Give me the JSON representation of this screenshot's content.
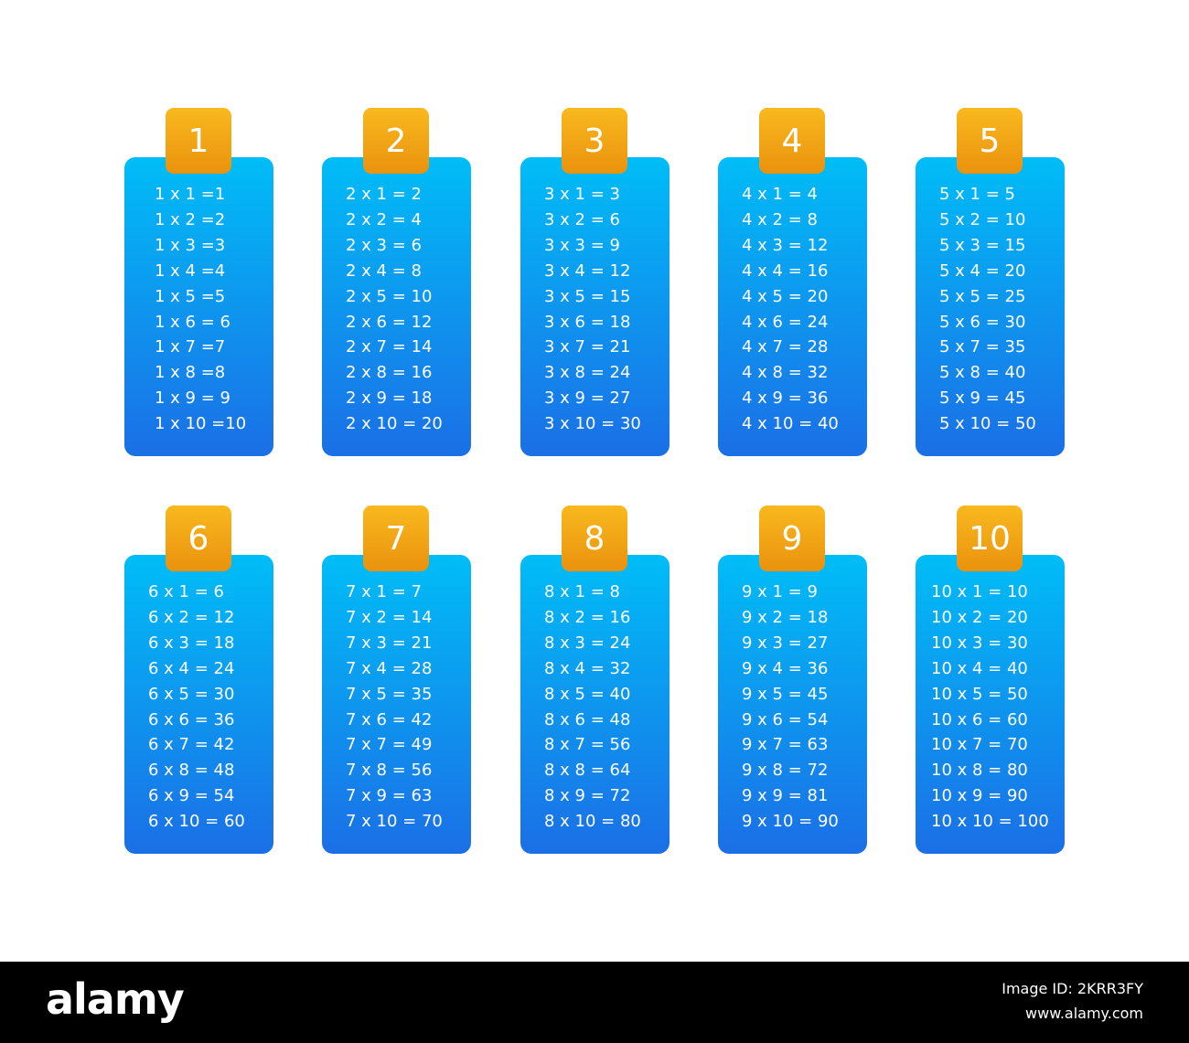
{
  "cards": [
    {
      "number": "1",
      "lines": [
        "1 x 1 =1",
        "1 x 2 =2",
        "1 x 3 =3",
        "1 x 4 =4",
        "1 x 5 =5",
        "1 x 6 = 6",
        "1 x 7 =7",
        "1 x 8 =8",
        "1 x 9 = 9",
        "1 x 10 =10"
      ]
    },
    {
      "number": "2",
      "lines": [
        "2 x 1 = 2",
        "2 x 2 = 4",
        "2 x 3 = 6",
        "2 x 4 = 8",
        "2 x 5 = 10",
        "2 x 6 = 12",
        "2 x 7 = 14",
        "2 x 8 = 16",
        "2 x 9 = 18",
        "2 x 10 = 20"
      ]
    },
    {
      "number": "3",
      "lines": [
        "3 x 1 = 3",
        "3 x 2 = 6",
        "3 x 3 = 9",
        "3 x 4 = 12",
        "3 x 5 = 15",
        "3 x 6 = 18",
        "3 x 7 = 21",
        "3 x 8 = 24",
        "3 x 9 = 27",
        "3 x 10 = 30"
      ]
    },
    {
      "number": "4",
      "lines": [
        "4 x 1 = 4",
        "4 x 2 = 8",
        "4 x 3 = 12",
        "4 x 4 = 16",
        "4 x 5 = 20",
        "4 x 6 = 24",
        "4 x 7 = 28",
        "4 x 8 = 32",
        "4 x 9 = 36",
        "4 x 10 = 40"
      ]
    },
    {
      "number": "5",
      "lines": [
        "5 x 1 = 5",
        "5 x 2 = 10",
        "5 x 3 = 15",
        "5 x 4 = 20",
        "5 x 5 = 25",
        "5 x 6 = 30",
        "5 x 7 = 35",
        "5 x 8 = 40",
        "5 x 9 = 45",
        "5 x 10 = 50"
      ]
    },
    {
      "number": "6",
      "lines": [
        "6 x 1 = 6",
        "6 x 2 = 12",
        "6 x 3 = 18",
        "6 x 4 = 24",
        "6 x 5 = 30",
        "6 x 6 = 36",
        "6 x 7 = 42",
        "6 x 8 = 48",
        "6 x 9 = 54",
        "6 x 10 = 60"
      ]
    },
    {
      "number": "7",
      "lines": [
        "7 x 1 = 7",
        "7 x 2 = 14",
        "7 x 3 = 21",
        "7 x 4 = 28",
        "7 x 5 = 35",
        "7 x 6 = 42",
        "7 x 7 = 49",
        "7 x 8 = 56",
        "7 x 9 = 63",
        "7 x 10 = 70"
      ]
    },
    {
      "number": "8",
      "lines": [
        "8 x 1 = 8",
        "8 x 2 = 16",
        "8 x 3 = 24",
        "8 x 4 = 32",
        "8 x 5 = 40",
        "8 x 6 = 48",
        "8 x 7 = 56",
        "8 x 8 = 64",
        "8 x 9 = 72",
        "8 x 10 = 80"
      ]
    },
    {
      "number": "9",
      "lines": [
        "9 x 1 = 9",
        "9 x 2 = 18",
        "9 x 3 = 27",
        "9 x 4 = 36",
        "9 x 5 = 45",
        "9 x 6 = 54",
        "9 x 7 = 63",
        "9 x 8 = 72",
        "9 x 9 = 81",
        "9 x 10 = 90"
      ]
    },
    {
      "number": "10",
      "lines": [
        "10 x 1 = 10",
        "10 x 2 = 20",
        "10 x 3 = 30",
        "10 x 4 = 40",
        "10 x 5 = 50",
        "10 x 6 = 60",
        "10 x 7 = 70",
        "10 x 8 = 80",
        "10 x 9 = 90",
        "10 x 10 = 100"
      ]
    }
  ],
  "footer": {
    "logo": "alamy",
    "image_id": "Image ID: 2KRR3FY",
    "url": "www.alamy.com"
  }
}
